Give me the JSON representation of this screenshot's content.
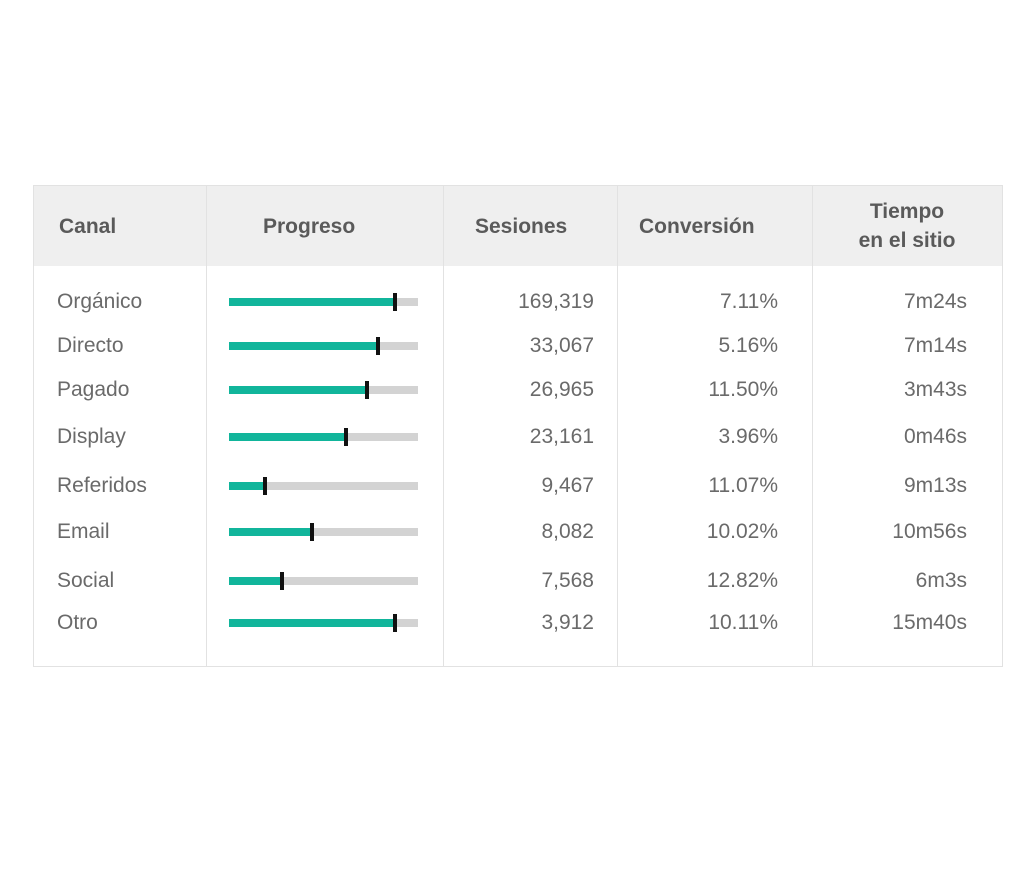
{
  "chart_data": {
    "type": "table",
    "columns": [
      "Canal",
      "Progreso",
      "Sesiones",
      "Conversión",
      "Tiempo en el sitio"
    ],
    "header": {
      "canal": "Canal",
      "progreso": "Progreso",
      "sesiones": "Sesiones",
      "conversion": "Conversión",
      "tiempo_line1": "Tiempo",
      "tiempo_line2": "en el sitio"
    },
    "rows": [
      {
        "canal": "Orgánico",
        "progress_fill": 0.88,
        "target": 0.88,
        "sesiones": "169,319",
        "conversion": "7.11%",
        "tiempo": "7m24s"
      },
      {
        "canal": "Directo",
        "progress_fill": 0.79,
        "target": 0.79,
        "sesiones": "33,067",
        "conversion": "5.16%",
        "tiempo": "7m14s"
      },
      {
        "canal": "Pagado",
        "progress_fill": 0.73,
        "target": 0.73,
        "sesiones": "26,965",
        "conversion": "11.50%",
        "tiempo": "3m43s"
      },
      {
        "canal": "Display",
        "progress_fill": 0.62,
        "target": 0.62,
        "sesiones": "23,161",
        "conversion": "3.96%",
        "tiempo": "0m46s"
      },
      {
        "canal": "Referidos",
        "progress_fill": 0.19,
        "target": 0.19,
        "sesiones": "9,467",
        "conversion": "11.07%",
        "tiempo": "9m13s"
      },
      {
        "canal": "Email",
        "progress_fill": 0.44,
        "target": 0.44,
        "sesiones": "8,082",
        "conversion": "10.02%",
        "tiempo": "10m56s"
      },
      {
        "canal": "Social",
        "progress_fill": 0.28,
        "target": 0.28,
        "sesiones": "7,568",
        "conversion": "12.82%",
        "tiempo": "6m3s"
      },
      {
        "canal": "Otro",
        "progress_fill": 0.88,
        "target": 0.88,
        "sesiones": "3,912",
        "conversion": "10.11%",
        "tiempo": "15m40s"
      }
    ],
    "colors": {
      "fill": "#11b59b",
      "track": "#d3d3d3",
      "marker": "#111111",
      "header_bg": "#efefef"
    }
  }
}
